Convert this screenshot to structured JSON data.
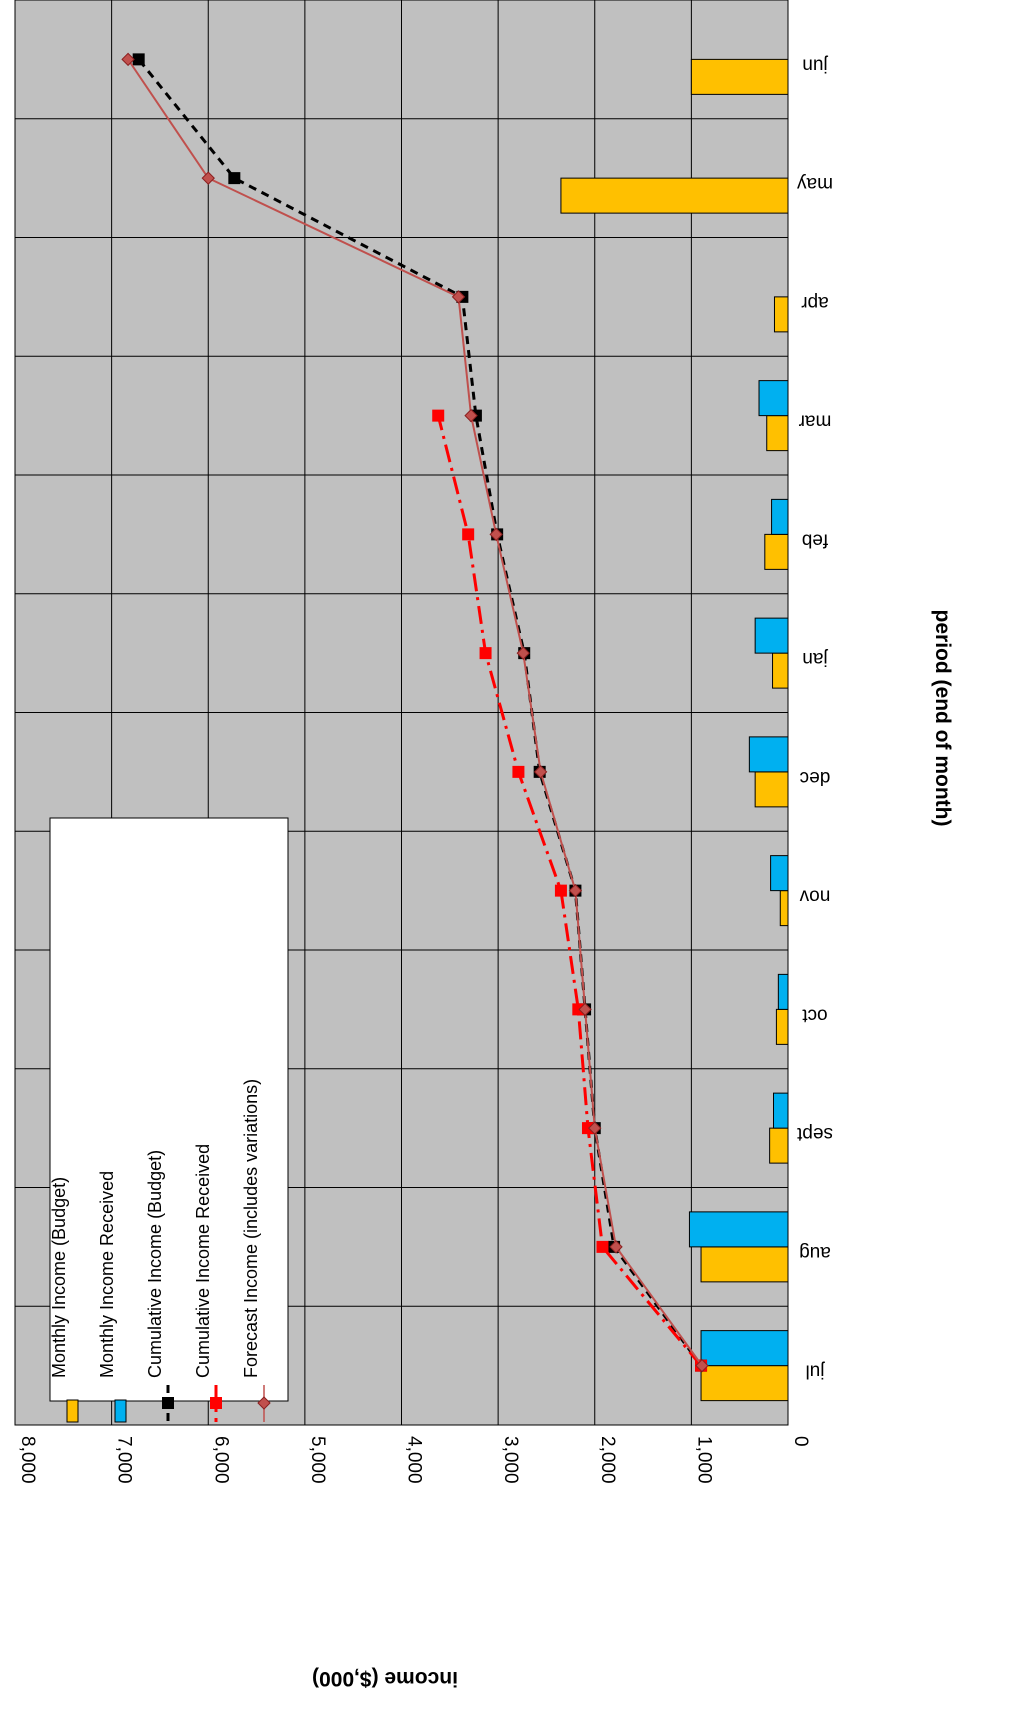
{
  "chart_data": {
    "type": "bar",
    "orientation": "rotated-90-clockwise",
    "categories": [
      "jul",
      "aug",
      "sept",
      "oct",
      "nov",
      "dec",
      "jan",
      "feb",
      "mar",
      "apr",
      "may",
      "jun"
    ],
    "xlabel": "period (end of month)",
    "ylabel": "income ($,000)",
    "ylim": [
      0,
      8000
    ],
    "yticks": [
      "0",
      "1,000",
      "2,000",
      "3,000",
      "4,000",
      "5,000",
      "6,000",
      "7,000",
      "8,000"
    ],
    "grid": true,
    "legend_position": "top-left",
    "series": [
      {
        "name": "Monthly Income (Budget)",
        "kind": "bar",
        "color": "#FFC000",
        "values": [
          900,
          900,
          190,
          120,
          80,
          340,
          160,
          240,
          220,
          140,
          2350,
          1000
        ]
      },
      {
        "name": "Monthly Income Received",
        "kind": "bar",
        "color": "#00B0F0",
        "values": [
          900,
          1020,
          150,
          100,
          180,
          400,
          340,
          170,
          300,
          null,
          null,
          null
        ]
      },
      {
        "name": "Cumulative Income (Budget)",
        "kind": "line",
        "color": "#000000",
        "dash": "8,6",
        "marker": "square",
        "values": [
          900,
          1800,
          2000,
          2100,
          2200,
          2570,
          2730,
          3010,
          3230,
          3370,
          5730,
          6720
        ]
      },
      {
        "name": "Cumulative Income Received",
        "kind": "line",
        "color": "#FF0000",
        "dash": "18,6,3,6",
        "marker": "square",
        "values": [
          900,
          1920,
          2070,
          2170,
          2350,
          2790,
          3130,
          3310,
          3620,
          null,
          null,
          null
        ]
      },
      {
        "name": "Forecast Income (includes variations)",
        "kind": "line",
        "color": "#C0504D",
        "dash": "",
        "marker": "diamond",
        "values": [
          890,
          1780,
          2000,
          2100,
          2200,
          2560,
          2740,
          3020,
          3280,
          3410,
          6000,
          6830
        ]
      }
    ]
  }
}
